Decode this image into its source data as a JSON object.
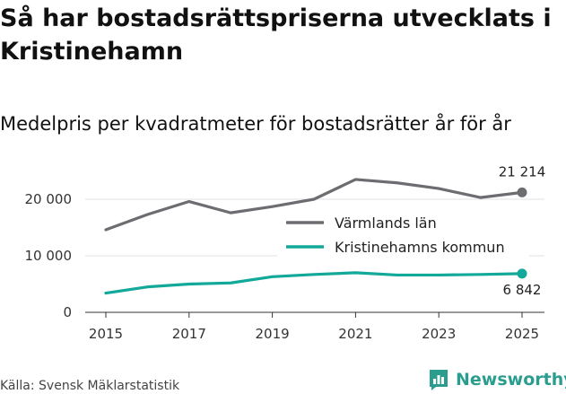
{
  "title": "Så har bostadsrättspriserna utvecklats i Kristinehamn",
  "subtitle": "Medelpris per kvadratmeter för bostadsrätter år för år",
  "source": "Källa: Svensk Mäklarstatistik",
  "logo_text": "Newsworthy",
  "colors": {
    "varmland": "#6d6c71",
    "kristinehamn": "#12a89a",
    "grid": "#e2e2e2",
    "brand": "#2a9d8f"
  },
  "chart_data": {
    "type": "line",
    "title": "Medelpris per kvadratmeter för bostadsrätter år för år",
    "x": [
      2015,
      2016,
      2017,
      2018,
      2019,
      2020,
      2021,
      2022,
      2023,
      2024,
      2025
    ],
    "xticks": [
      "2015",
      "2017",
      "2019",
      "2021",
      "2023",
      "2025"
    ],
    "yticks": [
      "0",
      "10 000",
      "20 000"
    ],
    "ylim": [
      0,
      25000
    ],
    "grid": true,
    "legend": "center-right",
    "series": [
      {
        "name": "Värmlands län",
        "values": [
          14600,
          17300,
          19600,
          17600,
          18700,
          20000,
          23500,
          22900,
          21900,
          20300,
          21214
        ],
        "end_label": "21 214"
      },
      {
        "name": "Kristinehamns kommun",
        "values": [
          3400,
          4500,
          5000,
          5200,
          6300,
          6700,
          7000,
          6600,
          6600,
          6700,
          6842
        ],
        "end_label": "6 842"
      }
    ]
  }
}
